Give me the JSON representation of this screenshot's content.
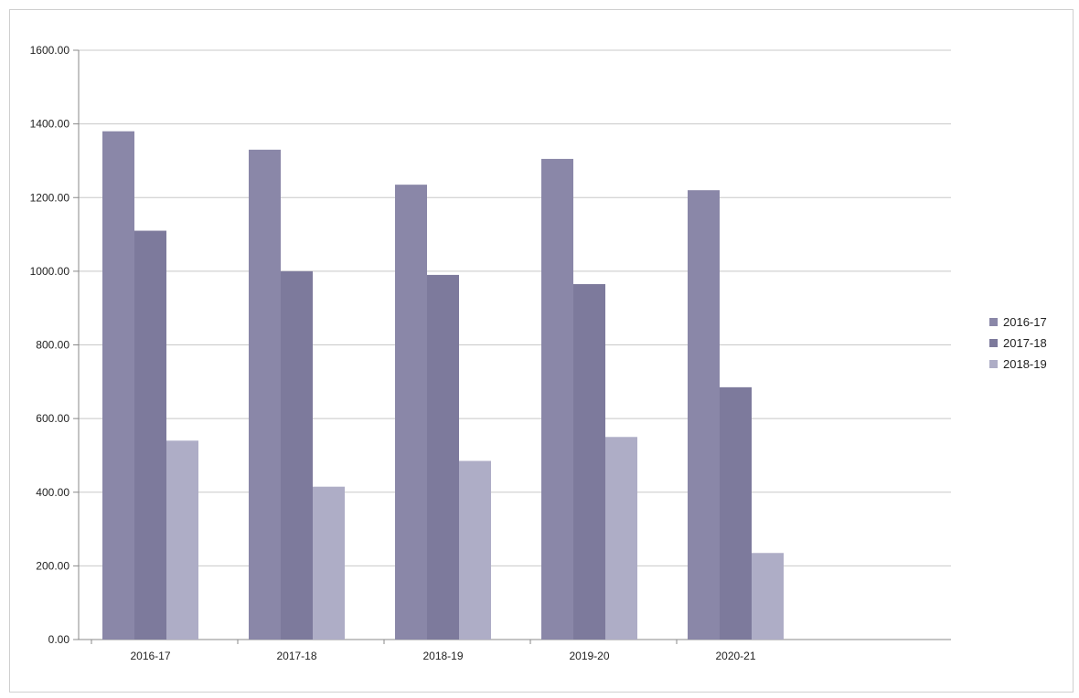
{
  "chart_data": {
    "type": "bar",
    "title": "",
    "xlabel": "",
    "ylabel": "",
    "categories": [
      "2016-17",
      "2017-18",
      "2018-19",
      "2019-20",
      "2020-21"
    ],
    "series": [
      {
        "name": "2016-17",
        "color": "#8a87a8",
        "values": [
          1380,
          1330,
          1235,
          1305,
          1220
        ]
      },
      {
        "name": "2017-18",
        "color": "#7d7a9c",
        "values": [
          1110,
          1000,
          990,
          965,
          685
        ]
      },
      {
        "name": "2018-19",
        "color": "#aeadc6",
        "values": [
          540,
          415,
          485,
          550,
          235
        ]
      }
    ],
    "ylim": [
      0,
      1600
    ],
    "yticks": [
      "0.00",
      "200.00",
      "400.00",
      "600.00",
      "800.00",
      "1000.00",
      "1200.00",
      "1400.00",
      "1600.00"
    ],
    "grid": true,
    "legend_position": "right"
  }
}
